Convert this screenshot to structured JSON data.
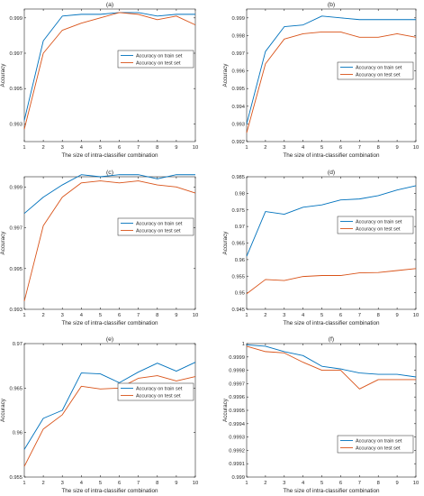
{
  "colors": {
    "train": "#0072BD",
    "test": "#D95319",
    "axis": "#262626"
  },
  "chart_data": [
    {
      "type": "line",
      "title": "(a)",
      "xlabel": "The size of intra-classifier combination",
      "ylabel": "Accuracy",
      "x": [
        1,
        2,
        3,
        4,
        5,
        6,
        7,
        8,
        9,
        10
      ],
      "xlim": [
        1,
        10
      ],
      "ylim": [
        0.992,
        0.9995
      ],
      "yticks": [
        0.993,
        0.995,
        0.997,
        0.999
      ],
      "yticklabels": [
        "0.993",
        "0.995",
        "0.997",
        "0.999"
      ],
      "xticklabels": [
        "1",
        "2",
        "3",
        "4",
        "5",
        "6",
        "7",
        "8",
        "9",
        "10"
      ],
      "legend_position": "right",
      "series": [
        {
          "name": "Accuracy on train set",
          "values": [
            0.9932,
            0.9977,
            0.9991,
            0.9992,
            0.9992,
            0.9993,
            0.9993,
            0.9991,
            0.9992,
            0.9992
          ]
        },
        {
          "name": "Accuracy on test set",
          "values": [
            0.9927,
            0.997,
            0.9983,
            0.9987,
            0.999,
            0.9993,
            0.9992,
            0.9989,
            0.9991,
            0.9986
          ]
        }
      ]
    },
    {
      "type": "line",
      "title": "(b)",
      "xlabel": "The size of intra-classifier combination",
      "ylabel": "Accuracy",
      "x": [
        1,
        2,
        3,
        4,
        5,
        6,
        7,
        8,
        9,
        10
      ],
      "xlim": [
        1,
        10
      ],
      "ylim": [
        0.992,
        0.9995
      ],
      "yticks": [
        0.992,
        0.993,
        0.994,
        0.995,
        0.996,
        0.997,
        0.998,
        0.999
      ],
      "yticklabels": [
        "0.992",
        "0.993",
        "0.994",
        "0.995",
        "0.996",
        "0.997",
        "0.998",
        "0.999"
      ],
      "xticklabels": [
        "1",
        "2",
        "3",
        "4",
        "5",
        "6",
        "7",
        "8",
        "9",
        "10"
      ],
      "legend_position": "right",
      "series": [
        {
          "name": "Accuracy on train set",
          "values": [
            0.993,
            0.9971,
            0.9985,
            0.9986,
            0.9991,
            0.999,
            0.9989,
            0.9989,
            0.9989,
            0.9989
          ]
        },
        {
          "name": "Accuracy on test set",
          "values": [
            0.9925,
            0.9964,
            0.9978,
            0.9981,
            0.9982,
            0.9982,
            0.9979,
            0.9979,
            0.9981,
            0.9979
          ]
        }
      ]
    },
    {
      "type": "line",
      "title": "(c)",
      "xlabel": "The size of intra-classifier combination",
      "ylabel": "Accuracy",
      "x": [
        1,
        2,
        3,
        4,
        5,
        6,
        7,
        8,
        9,
        10
      ],
      "xlim": [
        1,
        10
      ],
      "ylim": [
        0.993,
        0.9995
      ],
      "yticks": [
        0.993,
        0.995,
        0.997,
        0.999
      ],
      "yticklabels": [
        "0.993",
        "0.995",
        "0.997",
        "0.999"
      ],
      "xticklabels": [
        "1",
        "2",
        "3",
        "4",
        "5",
        "6",
        "7",
        "8",
        "9",
        "10"
      ],
      "legend_position": "right",
      "series": [
        {
          "name": "Accuracy on train set",
          "values": [
            0.9977,
            0.9985,
            0.9991,
            0.9996,
            0.9995,
            0.9996,
            0.9996,
            0.9994,
            0.9996,
            0.9996
          ]
        },
        {
          "name": "Accuracy on test set",
          "values": [
            0.9934,
            0.9971,
            0.9985,
            0.9992,
            0.9993,
            0.9992,
            0.9993,
            0.9991,
            0.999,
            0.9987
          ]
        }
      ]
    },
    {
      "type": "line",
      "title": "(d)",
      "xlabel": "The size of intra-classifier combination",
      "ylabel": "Accuracy",
      "x": [
        1,
        2,
        3,
        4,
        5,
        6,
        7,
        8,
        9,
        10
      ],
      "xlim": [
        1,
        10
      ],
      "ylim": [
        0.945,
        0.985
      ],
      "yticks": [
        0.945,
        0.95,
        0.955,
        0.96,
        0.965,
        0.97,
        0.975,
        0.98,
        0.985
      ],
      "yticklabels": [
        "0.945",
        "0.95",
        "0.955",
        "0.96",
        "0.965",
        "0.97",
        "0.975",
        "0.98",
        "0.985"
      ],
      "xticklabels": [
        "1",
        "2",
        "3",
        "4",
        "5",
        "6",
        "7",
        "8",
        "9",
        "10"
      ],
      "legend_position": "right",
      "series": [
        {
          "name": "Accuracy on train set",
          "values": [
            0.961,
            0.9745,
            0.9737,
            0.9758,
            0.9765,
            0.978,
            0.9783,
            0.9793,
            0.981,
            0.9823
          ]
        },
        {
          "name": "Accuracy on test set",
          "values": [
            0.9497,
            0.954,
            0.9537,
            0.9549,
            0.9552,
            0.9552,
            0.956,
            0.9561,
            0.9567,
            0.9573
          ]
        }
      ]
    },
    {
      "type": "line",
      "title": "(e)",
      "xlabel": "The size of intra-classifier combination",
      "ylabel": "Accuracy",
      "x": [
        1,
        2,
        3,
        4,
        5,
        6,
        7,
        8,
        9,
        10
      ],
      "xlim": [
        1,
        10
      ],
      "ylim": [
        0.955,
        0.97
      ],
      "yticks": [
        0.955,
        0.96,
        0.965,
        0.97
      ],
      "yticklabels": [
        "0.955",
        "0.96",
        "0.965",
        "0.97"
      ],
      "xticklabels": [
        "1",
        "2",
        "3",
        "4",
        "5",
        "6",
        "7",
        "8",
        "9",
        "10"
      ],
      "legend_position": "right",
      "series": [
        {
          "name": "Accuracy on train set",
          "values": [
            0.9581,
            0.9616,
            0.9625,
            0.9667,
            0.9666,
            0.9656,
            0.9668,
            0.9678,
            0.9669,
            0.9679
          ]
        },
        {
          "name": "Accuracy on test set",
          "values": [
            0.9562,
            0.9604,
            0.962,
            0.9652,
            0.9649,
            0.965,
            0.9661,
            0.9664,
            0.9658,
            0.9663
          ]
        }
      ]
    },
    {
      "type": "line",
      "title": "(f)",
      "xlabel": "The size of intra-classifier combination",
      "ylabel": "Accuracy",
      "x": [
        1,
        2,
        3,
        4,
        5,
        6,
        7,
        8,
        9,
        10
      ],
      "xlim": [
        1,
        10
      ],
      "ylim": [
        0.999,
        1.0
      ],
      "yticks": [
        0.999,
        0.9991,
        0.9992,
        0.9993,
        0.9994,
        0.9995,
        0.9996,
        0.9997,
        0.9998,
        0.9999,
        1.0
      ],
      "yticklabels": [
        "0.999",
        "0.9991",
        "0.9992",
        "0.9993",
        "0.9994",
        "0.9995",
        "0.9996",
        "0.9997",
        "0.9998",
        "0.9999",
        "1"
      ],
      "xticklabels": [
        "1",
        "2",
        "3",
        "4",
        "5",
        "6",
        "7",
        "8",
        "9",
        "10"
      ],
      "legend_position": "lower-right",
      "series": [
        {
          "name": "Accuracy on train set",
          "values": [
            0.99999,
            0.99998,
            0.99994,
            0.99991,
            0.99983,
            0.99981,
            0.99978,
            0.99977,
            0.99977,
            0.99975
          ]
        },
        {
          "name": "Accuracy on test set",
          "values": [
            0.99998,
            0.99994,
            0.99993,
            0.99986,
            0.9998,
            0.9998,
            0.99966,
            0.99973,
            0.99973,
            0.99973
          ]
        }
      ]
    }
  ]
}
